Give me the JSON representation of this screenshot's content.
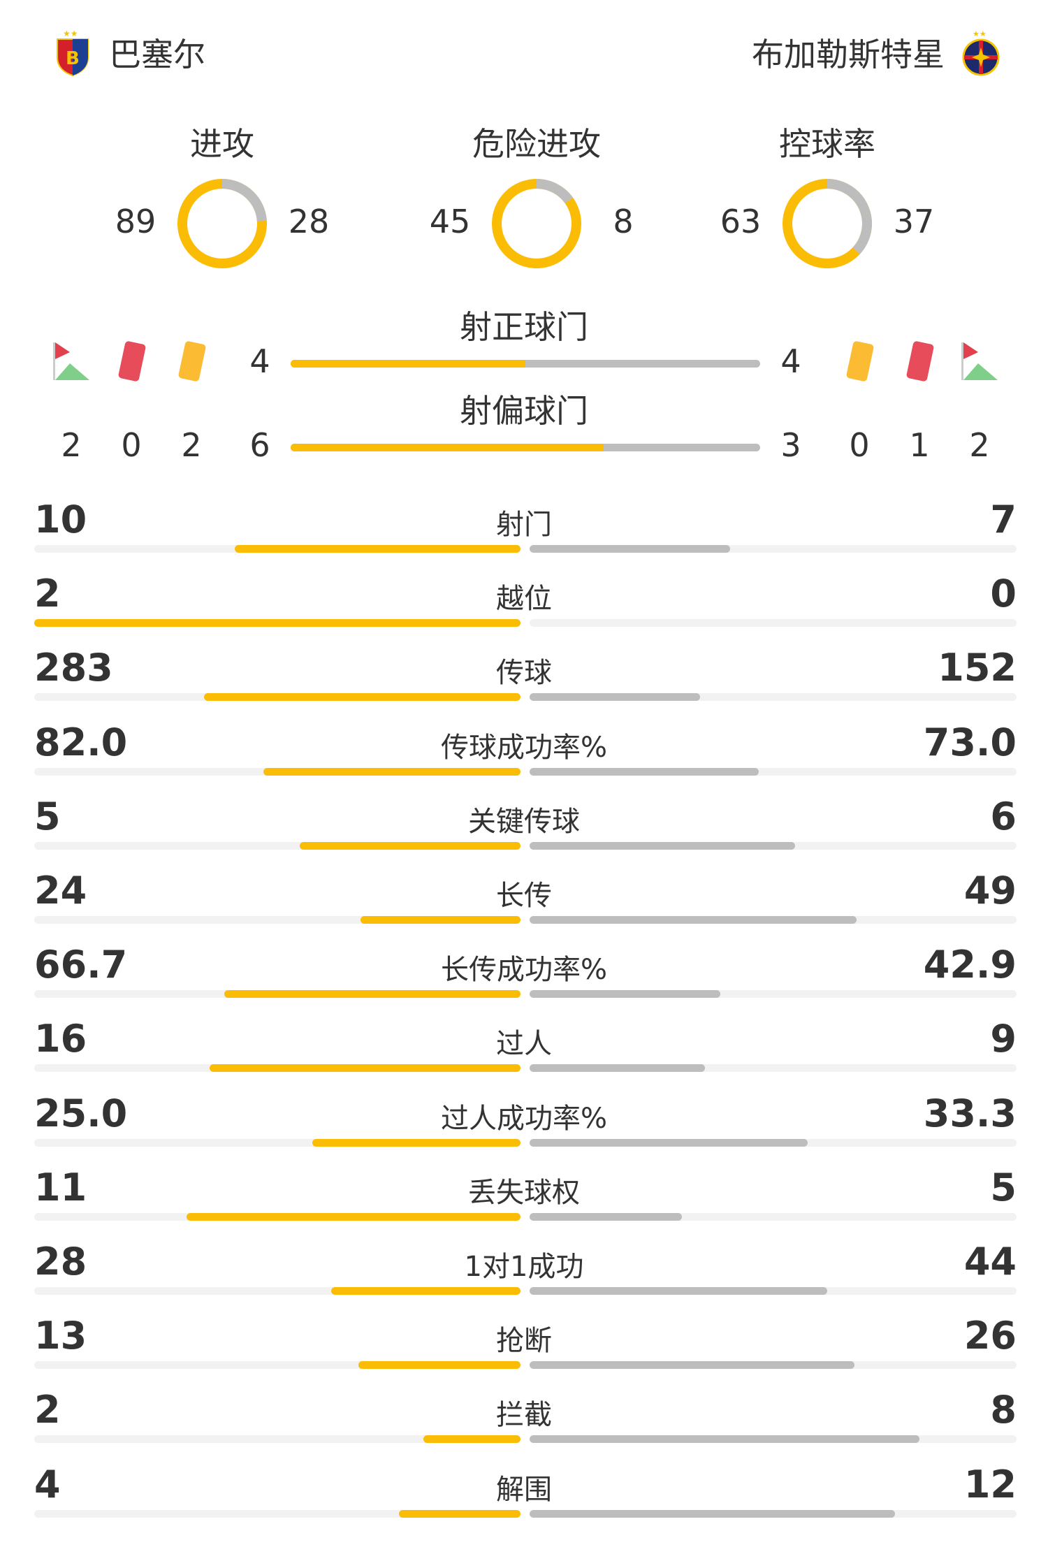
{
  "teams": {
    "home": {
      "name": "巴塞尔",
      "logo": "fc-basel-crest"
    },
    "away": {
      "name": "布加勒斯特星",
      "logo": "fcsb-crest"
    }
  },
  "colors": {
    "home": "#fbbc05",
    "away": "#bdbdbd",
    "track": "#f2f2f2"
  },
  "donuts": [
    {
      "label": "进攻",
      "home": 89,
      "away": 28
    },
    {
      "label": "危险进攻",
      "home": 45,
      "away": 8
    },
    {
      "label": "控球率",
      "home": 63,
      "away": 37
    }
  ],
  "shots_on": {
    "label": "射正球门",
    "home": 4,
    "away": 4
  },
  "shots_off": {
    "label": "射偏球门",
    "home": 6,
    "away": 3
  },
  "cards": {
    "home": {
      "corners": 2,
      "red": 0,
      "yellow": 2
    },
    "away": {
      "yellow": 0,
      "red": 1,
      "corners": 2
    }
  },
  "stats": [
    {
      "label": "射门",
      "home": "10",
      "away": "7"
    },
    {
      "label": "越位",
      "home": "2",
      "away": "0"
    },
    {
      "label": "传球",
      "home": "283",
      "away": "152"
    },
    {
      "label": "传球成功率%",
      "home": "82.0",
      "away": "73.0"
    },
    {
      "label": "关键传球",
      "home": "5",
      "away": "6"
    },
    {
      "label": "长传",
      "home": "24",
      "away": "49"
    },
    {
      "label": "长传成功率%",
      "home": "66.7",
      "away": "42.9"
    },
    {
      "label": "过人",
      "home": "16",
      "away": "9"
    },
    {
      "label": "过人成功率%",
      "home": "25.0",
      "away": "33.3"
    },
    {
      "label": "丢失球权",
      "home": "11",
      "away": "5"
    },
    {
      "label": "1对1成功",
      "home": "28",
      "away": "44"
    },
    {
      "label": "抢断",
      "home": "13",
      "away": "26"
    },
    {
      "label": "拦截",
      "home": "2",
      "away": "8"
    },
    {
      "label": "解围",
      "home": "4",
      "away": "12"
    }
  ]
}
